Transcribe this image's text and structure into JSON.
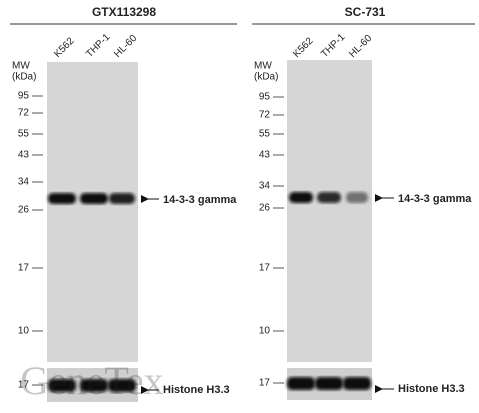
{
  "panels": [
    {
      "title": "GTX113298",
      "lanes": [
        "K562",
        "THP-1",
        "HL-60"
      ],
      "mw_label": "MW",
      "mw_unit": "(kDa)",
      "markers": [
        "95",
        "72",
        "55",
        "43",
        "34",
        "26",
        "17",
        "10"
      ],
      "lower_marker": "17",
      "target_label": "14-3-3 gamma",
      "control_label": "Histone H3.3"
    },
    {
      "title": "SC-731",
      "lanes": [
        "K562",
        "THP-1",
        "HL-60"
      ],
      "mw_label": "MW",
      "mw_unit": "(kDa)",
      "markers": [
        "95",
        "72",
        "55",
        "43",
        "34",
        "26",
        "17",
        "10"
      ],
      "lower_marker": "17",
      "target_label": "14-3-3 gamma",
      "control_label": "Histone H3.3"
    }
  ],
  "watermark": "GeneTex"
}
